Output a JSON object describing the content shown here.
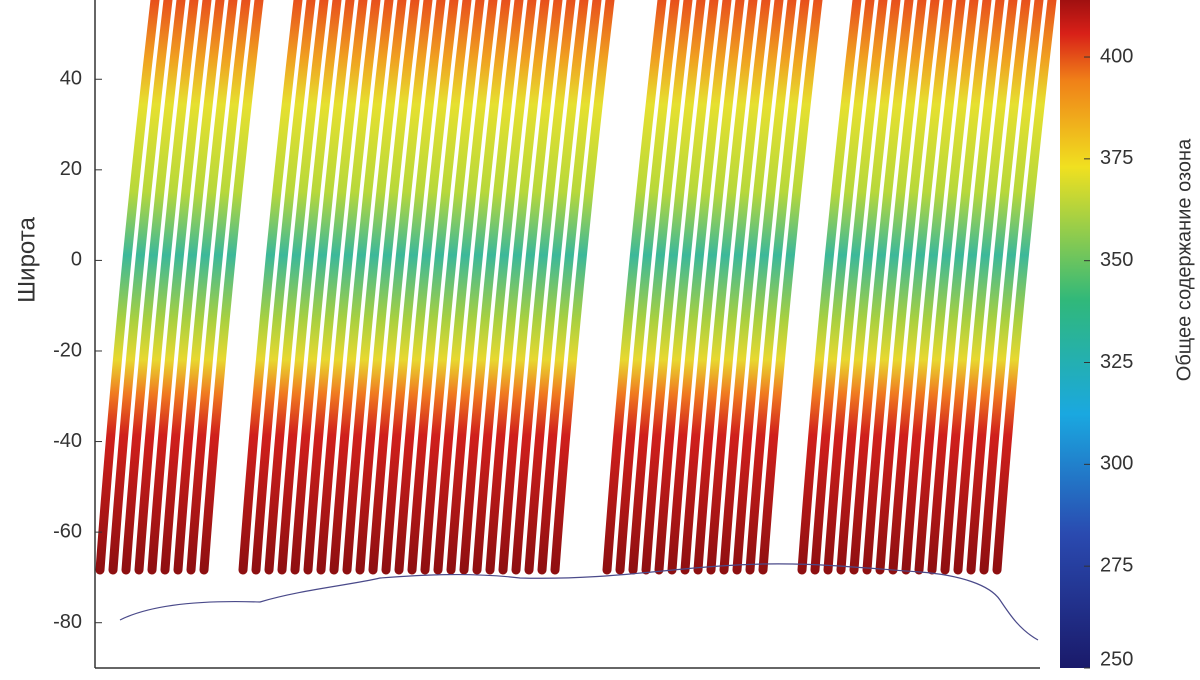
{
  "chart_data": {
    "type": "map",
    "ylabel": "Широта",
    "ylim": [
      -90,
      57.5
    ],
    "yticks": [
      40,
      20,
      0,
      -20,
      -40,
      -60,
      -80
    ],
    "colorbar": {
      "label": "Общее содержание озона",
      "lim": [
        250,
        414
      ],
      "ticks": [
        250,
        275,
        300,
        325,
        350,
        375,
        400
      ]
    }
  }
}
